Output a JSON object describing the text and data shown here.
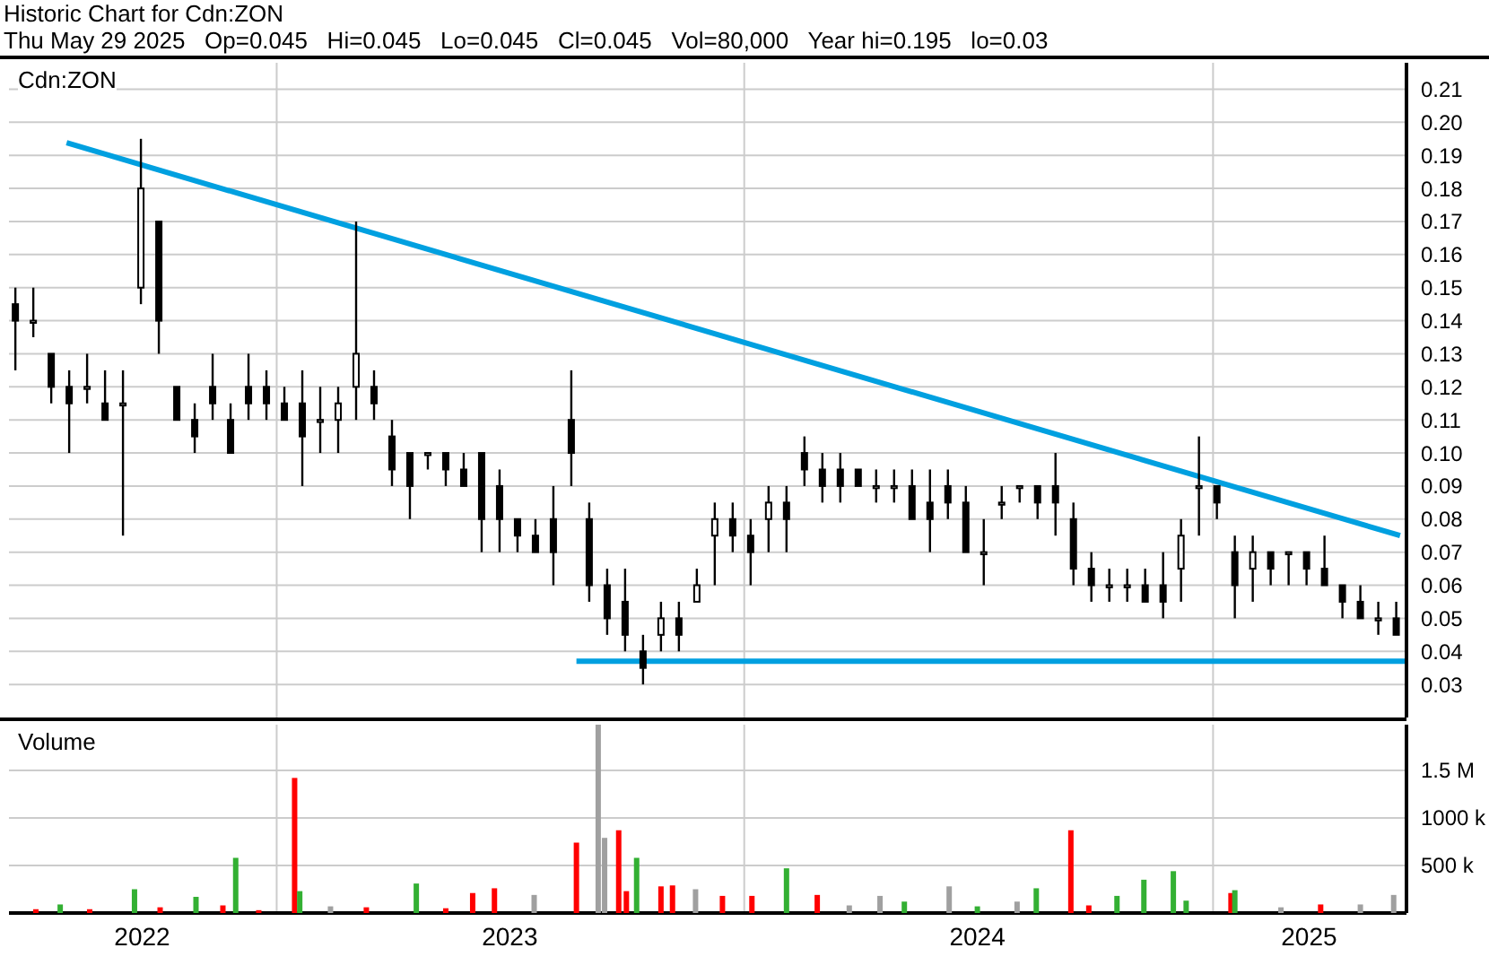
{
  "chart_data": [
    {
      "type": "candlestick",
      "title": "Historic Chart for Cdn:ZON",
      "subtitle": "Thu May 29 2025   Op=0.045   Hi=0.045   Lo=0.045   Cl=0.045   Vol=80,000   Year hi=0.195   lo=0.03",
      "annotations": [
        "Cdn:ZON"
      ],
      "x": [
        "2022-06-11",
        "2022-06-25",
        "2022-07-09",
        "2022-07-23",
        "2022-08-06",
        "2022-08-20",
        "2022-09-03",
        "2022-09-17",
        "2022-10-01",
        "2022-10-15",
        "2022-10-29",
        "2022-11-12",
        "2022-11-26",
        "2022-12-10",
        "2022-12-24",
        "2023-01-07",
        "2023-01-21",
        "2023-02-04",
        "2023-02-18",
        "2023-03-04",
        "2023-03-18",
        "2023-04-01",
        "2023-04-15",
        "2023-04-29",
        "2023-05-13",
        "2023-05-27",
        "2023-06-10",
        "2023-06-24",
        "2023-07-08",
        "2023-07-22",
        "2023-08-05",
        "2023-08-19",
        "2023-09-02",
        "2023-09-16",
        "2023-09-30",
        "2023-10-14",
        "2023-10-28",
        "2023-11-11",
        "2023-11-25",
        "2023-12-09",
        "2023-12-23",
        "2024-01-06",
        "2024-01-20",
        "2024-02-03",
        "2024-02-17",
        "2024-03-02",
        "2024-03-16",
        "2024-03-30",
        "2024-04-13",
        "2024-04-27",
        "2024-05-11",
        "2024-05-25",
        "2024-06-08",
        "2024-06-22",
        "2024-07-06",
        "2024-07-20",
        "2024-08-03",
        "2024-08-17",
        "2024-08-31",
        "2024-09-14",
        "2024-09-28",
        "2024-10-12",
        "2024-10-26",
        "2024-11-09",
        "2024-11-23",
        "2024-12-07",
        "2024-12-21",
        "2025-01-04",
        "2025-01-18",
        "2025-02-01",
        "2025-02-15",
        "2025-03-01",
        "2025-03-15",
        "2025-03-29",
        "2025-04-12",
        "2025-04-26",
        "2025-05-10",
        "2025-05-24"
      ],
      "ohlc": [
        [
          0.145,
          0.15,
          0.125,
          0.14
        ],
        [
          0.14,
          0.15,
          0.135,
          0.14
        ],
        [
          0.13,
          0.13,
          0.115,
          0.12
        ],
        [
          0.12,
          0.125,
          0.1,
          0.115
        ],
        [
          0.12,
          0.13,
          0.115,
          0.12
        ],
        [
          0.115,
          0.125,
          0.11,
          0.11
        ],
        [
          0.115,
          0.125,
          0.075,
          0.115
        ],
        [
          0.15,
          0.195,
          0.145,
          0.18
        ],
        [
          0.17,
          0.17,
          0.13,
          0.14
        ],
        [
          0.12,
          0.12,
          0.11,
          0.11
        ],
        [
          0.11,
          0.115,
          0.1,
          0.105
        ],
        [
          0.12,
          0.13,
          0.11,
          0.115
        ],
        [
          0.11,
          0.115,
          0.1,
          0.1
        ],
        [
          0.12,
          0.13,
          0.11,
          0.115
        ],
        [
          0.12,
          0.125,
          0.11,
          0.115
        ],
        [
          0.115,
          0.12,
          0.11,
          0.11
        ],
        [
          0.115,
          0.125,
          0.09,
          0.105
        ],
        [
          0.11,
          0.12,
          0.1,
          0.11
        ],
        [
          0.11,
          0.12,
          0.1,
          0.115
        ],
        [
          0.12,
          0.17,
          0.11,
          0.13
        ],
        [
          0.12,
          0.125,
          0.11,
          0.115
        ],
        [
          0.105,
          0.11,
          0.09,
          0.095
        ],
        [
          0.1,
          0.1,
          0.08,
          0.09
        ],
        [
          0.1,
          0.1,
          0.095,
          0.1
        ],
        [
          0.1,
          0.1,
          0.09,
          0.095
        ],
        [
          0.095,
          0.1,
          0.09,
          0.09
        ],
        [
          0.1,
          0.1,
          0.07,
          0.08
        ],
        [
          0.09,
          0.095,
          0.07,
          0.08
        ],
        [
          0.08,
          0.08,
          0.07,
          0.075
        ],
        [
          0.075,
          0.08,
          0.07,
          0.07
        ],
        [
          0.08,
          0.09,
          0.06,
          0.07
        ],
        [
          0.11,
          0.125,
          0.09,
          0.1
        ],
        [
          0.08,
          0.085,
          0.055,
          0.06
        ],
        [
          0.06,
          0.065,
          0.045,
          0.05
        ],
        [
          0.055,
          0.065,
          0.04,
          0.045
        ],
        [
          0.04,
          0.045,
          0.03,
          0.035
        ],
        [
          0.045,
          0.055,
          0.04,
          0.05
        ],
        [
          0.05,
          0.055,
          0.04,
          0.045
        ],
        [
          0.055,
          0.065,
          0.055,
          0.06
        ],
        [
          0.075,
          0.085,
          0.06,
          0.08
        ],
        [
          0.08,
          0.085,
          0.07,
          0.075
        ],
        [
          0.075,
          0.08,
          0.06,
          0.07
        ],
        [
          0.08,
          0.09,
          0.07,
          0.085
        ],
        [
          0.085,
          0.09,
          0.07,
          0.08
        ],
        [
          0.1,
          0.105,
          0.09,
          0.095
        ],
        [
          0.095,
          0.1,
          0.085,
          0.09
        ],
        [
          0.095,
          0.1,
          0.085,
          0.09
        ],
        [
          0.095,
          0.095,
          0.09,
          0.09
        ],
        [
          0.09,
          0.095,
          0.085,
          0.09
        ],
        [
          0.09,
          0.095,
          0.085,
          0.09
        ],
        [
          0.09,
          0.095,
          0.08,
          0.08
        ],
        [
          0.085,
          0.095,
          0.07,
          0.08
        ],
        [
          0.09,
          0.095,
          0.08,
          0.085
        ],
        [
          0.085,
          0.09,
          0.07,
          0.07
        ],
        [
          0.07,
          0.08,
          0.06,
          0.07
        ],
        [
          0.085,
          0.09,
          0.08,
          0.085
        ],
        [
          0.09,
          0.09,
          0.085,
          0.09
        ],
        [
          0.09,
          0.09,
          0.08,
          0.085
        ],
        [
          0.09,
          0.1,
          0.075,
          0.085
        ],
        [
          0.08,
          0.085,
          0.06,
          0.065
        ],
        [
          0.065,
          0.07,
          0.055,
          0.06
        ],
        [
          0.06,
          0.065,
          0.055,
          0.06
        ],
        [
          0.06,
          0.065,
          0.055,
          0.06
        ],
        [
          0.06,
          0.065,
          0.055,
          0.055
        ],
        [
          0.06,
          0.07,
          0.05,
          0.055
        ],
        [
          0.065,
          0.08,
          0.055,
          0.075
        ],
        [
          0.09,
          0.105,
          0.075,
          0.09
        ],
        [
          0.09,
          0.09,
          0.08,
          0.085
        ],
        [
          0.07,
          0.075,
          0.05,
          0.06
        ],
        [
          0.065,
          0.075,
          0.055,
          0.07
        ],
        [
          0.07,
          0.07,
          0.06,
          0.065
        ],
        [
          0.07,
          0.07,
          0.06,
          0.07
        ],
        [
          0.07,
          0.07,
          0.06,
          0.065
        ],
        [
          0.065,
          0.075,
          0.06,
          0.06
        ],
        [
          0.06,
          0.06,
          0.05,
          0.055
        ],
        [
          0.055,
          0.06,
          0.05,
          0.05
        ],
        [
          0.05,
          0.055,
          0.045,
          0.05
        ],
        [
          0.05,
          0.055,
          0.045,
          0.045
        ]
      ],
      "color": "#000000",
      "series": [
        {
          "type": "line",
          "color": "#00a0e0",
          "x": [
            "2022-07-21",
            "2025-05-27"
          ],
          "values": [
            0.1938,
            0.075
          ]
        },
        {
          "type": "line",
          "color": "#00a0e0",
          "x": [
            "2023-08-23",
            "2025-06-01"
          ],
          "values": [
            0.037,
            0.037
          ]
        }
      ],
      "xlim": [
        "2022-06-06",
        "2025-06-01"
      ],
      "xticks": [
        {
          "value": "2023-01-01",
          "label": null
        },
        {
          "value": "2024-01-01",
          "label": null
        },
        {
          "value": "2025-01-01",
          "label": null
        }
      ],
      "ylim": [
        0.02,
        0.218
      ],
      "yticks": [
        0.03,
        0.04,
        0.05,
        0.06,
        0.07,
        0.08,
        0.09,
        {
          "value": 0.1,
          "label": "0.10"
        },
        0.11,
        0.12,
        0.13,
        0.14,
        0.15,
        0.16,
        0.17,
        0.18,
        0.19,
        {
          "value": 0.2,
          "label": "0.20"
        },
        0.21
      ],
      "grid": true,
      "tick_labels": "y"
    },
    {
      "type": "bar",
      "annotations": [
        "Volume"
      ],
      "x": [
        "2022-06-27",
        "2022-07-16",
        "2022-08-08",
        "2022-09-12",
        "2022-10-02",
        "2022-10-30",
        "2022-11-20",
        "2022-11-30",
        "2022-12-18",
        "2023-01-15",
        "2023-01-19",
        "2023-02-12",
        "2023-03-12",
        "2023-04-20",
        "2023-05-13",
        "2023-06-03",
        "2023-06-20",
        "2023-07-21",
        "2023-08-23",
        "2023-09-09",
        "2023-09-14",
        "2023-09-25",
        "2023-10-01",
        "2023-10-09",
        "2023-10-28",
        "2023-11-06",
        "2023-11-24",
        "2023-12-15",
        "2024-01-07",
        "2024-02-03",
        "2024-02-27",
        "2024-03-23",
        "2024-04-16",
        "2024-05-05",
        "2024-06-09",
        "2024-07-01",
        "2024-08-01",
        "2024-08-16",
        "2024-09-12",
        "2024-09-26",
        "2024-10-18",
        "2024-11-08",
        "2024-12-01",
        "2024-12-11",
        "2025-01-15",
        "2025-01-18",
        "2025-02-23",
        "2025-03-26",
        "2025-04-26",
        "2025-05-22"
      ],
      "values": [
        40000,
        90000,
        40000,
        250000,
        60000,
        170000,
        80000,
        580000,
        30000,
        1420000,
        230000,
        70000,
        60000,
        310000,
        50000,
        210000,
        260000,
        190000,
        740000,
        1980000,
        790000,
        870000,
        230000,
        580000,
        280000,
        290000,
        250000,
        180000,
        180000,
        470000,
        190000,
        80000,
        180000,
        120000,
        280000,
        70000,
        120000,
        260000,
        870000,
        80000,
        180000,
        350000,
        440000,
        130000,
        210000,
        240000,
        60000,
        90000,
        90000,
        190000
      ],
      "colors": [
        "#ff0000",
        "#33b033",
        "#ff0000",
        "#33b033",
        "#ff0000",
        "#33b033",
        "#ff0000",
        "#33b033",
        "#ff0000",
        "#ff0000",
        "#33b033",
        "#a0a0a0",
        "#ff0000",
        "#33b033",
        "#ff0000",
        "#ff0000",
        "#ff0000",
        "#a0a0a0",
        "#ff0000",
        "#a0a0a0",
        "#a0a0a0",
        "#ff0000",
        "#ff0000",
        "#33b033",
        "#ff0000",
        "#ff0000",
        "#a0a0a0",
        "#ff0000",
        "#ff0000",
        "#33b033",
        "#ff0000",
        "#a0a0a0",
        "#a0a0a0",
        "#33b033",
        "#a0a0a0",
        "#33b033",
        "#a0a0a0",
        "#33b033",
        "#ff0000",
        "#ff0000",
        "#33b033",
        "#33b033",
        "#33b033",
        "#33b033",
        "#ff0000",
        "#33b033",
        "#a0a0a0",
        "#ff0000",
        "#a0a0a0",
        "#a0a0a0"
      ],
      "xlim": [
        "2022-06-06",
        "2025-06-01"
      ],
      "xticks": [
        {
          "value": "2022-09-18",
          "label": "2022"
        },
        {
          "value": "2023-01-01",
          "label": null
        },
        {
          "value": "2023-07-02",
          "label": "2023"
        },
        {
          "value": "2024-01-01",
          "label": null
        },
        {
          "value": "2024-07-01",
          "label": "2024"
        },
        {
          "value": "2025-01-01",
          "label": null
        },
        {
          "value": "2025-03-17",
          "label": "2025"
        }
      ],
      "ylim": [
        0,
        1980000
      ],
      "yticks": [
        {
          "value": 500000,
          "label": "500 k"
        },
        {
          "value": 1000000,
          "label": "1000 k"
        },
        {
          "value": 1500000,
          "label": "1.5 M"
        }
      ],
      "grid": true
    }
  ]
}
